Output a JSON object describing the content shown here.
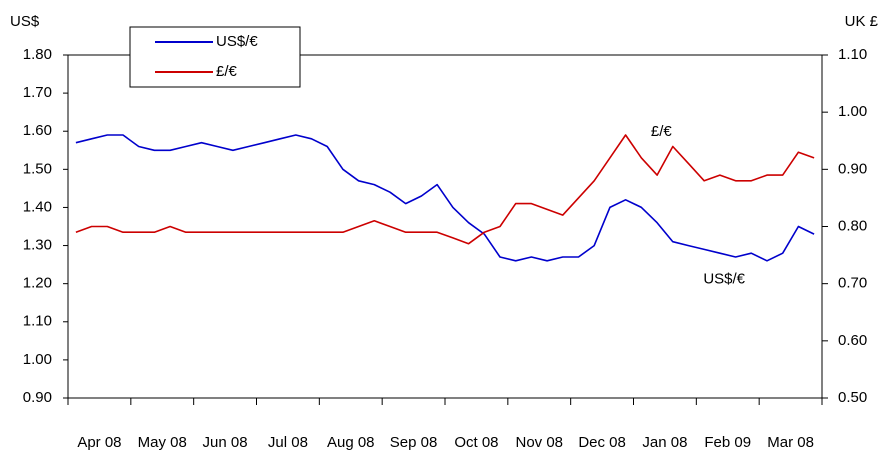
{
  "chart_data": {
    "type": "line",
    "y_label": "US$",
    "y2_label": "UK £",
    "categories": [
      null,
      null,
      "Apr 08",
      null,
      null,
      null,
      "May 08",
      null,
      null,
      null,
      "Jun 08",
      null,
      null,
      null,
      "Jul 08",
      null,
      null,
      null,
      "Aug 08",
      null,
      null,
      null,
      "Sep 08",
      null,
      null,
      null,
      "Oct 08",
      null,
      null,
      null,
      "Nov 08",
      null,
      null,
      null,
      "Dec 08",
      null,
      null,
      null,
      "Jan 08",
      null,
      null,
      null,
      "Feb 09",
      null,
      null,
      null,
      "Mar 08",
      null
    ],
    "series": [
      {
        "name": "US$/€",
        "color": "#0000cc",
        "axis": "y",
        "values": [
          1.57,
          1.58,
          1.59,
          1.59,
          1.56,
          1.55,
          1.55,
          1.56,
          1.57,
          1.56,
          1.55,
          1.56,
          1.57,
          1.58,
          1.59,
          1.58,
          1.56,
          1.5,
          1.47,
          1.46,
          1.44,
          1.41,
          1.43,
          1.46,
          1.4,
          1.36,
          1.33,
          1.27,
          1.26,
          1.27,
          1.26,
          1.27,
          1.27,
          1.3,
          1.4,
          1.42,
          1.4,
          1.36,
          1.31,
          1.3,
          1.29,
          1.28,
          1.27,
          1.28,
          1.26,
          1.28,
          1.35,
          1.33
        ]
      },
      {
        "name": "£/€",
        "color": "#cc0000",
        "axis": "y2",
        "values": [
          0.79,
          0.8,
          0.8,
          0.79,
          0.79,
          0.79,
          0.8,
          0.79,
          0.79,
          0.79,
          0.79,
          0.79,
          0.79,
          0.79,
          0.79,
          0.79,
          0.79,
          0.79,
          0.8,
          0.81,
          0.8,
          0.79,
          0.79,
          0.79,
          0.78,
          0.77,
          0.79,
          0.8,
          0.84,
          0.84,
          0.83,
          0.82,
          0.85,
          0.88,
          0.92,
          0.96,
          0.92,
          0.89,
          0.94,
          0.91,
          0.88,
          0.89,
          0.88,
          0.88,
          0.89,
          0.89,
          0.93,
          0.92
        ]
      }
    ],
    "annotations": [
      {
        "text": "£/€",
        "series": 1,
        "index": 36
      },
      {
        "text": "US$/€",
        "series": 0,
        "index": 40
      }
    ],
    "ylim": [
      0.9,
      1.8
    ],
    "yticks": [
      {
        "value": 0.9,
        "label": "0.90"
      },
      {
        "value": 1.0,
        "label": "1.00"
      },
      {
        "value": 1.1,
        "label": "1.10"
      },
      {
        "value": 1.2,
        "label": "1.20"
      },
      {
        "value": 1.3,
        "label": "1.30"
      },
      {
        "value": 1.4,
        "label": "1.40"
      },
      {
        "value": 1.5,
        "label": "1.50"
      },
      {
        "value": 1.6,
        "label": "1.60"
      },
      {
        "value": 1.7,
        "label": "1.70"
      },
      {
        "value": 1.8,
        "label": "1.80"
      }
    ],
    "y2lim": [
      0.5,
      1.1
    ],
    "y2ticks": [
      {
        "value": 0.5,
        "label": "0.50"
      },
      {
        "value": 0.6,
        "label": "0.60"
      },
      {
        "value": 0.7,
        "label": "0.70"
      },
      {
        "value": 0.8,
        "label": "0.80"
      },
      {
        "value": 0.9,
        "label": "0.90"
      },
      {
        "value": 1.0,
        "label": "1.00"
      },
      {
        "value": 1.1,
        "label": "1.10"
      }
    ],
    "legend": "upper left"
  }
}
